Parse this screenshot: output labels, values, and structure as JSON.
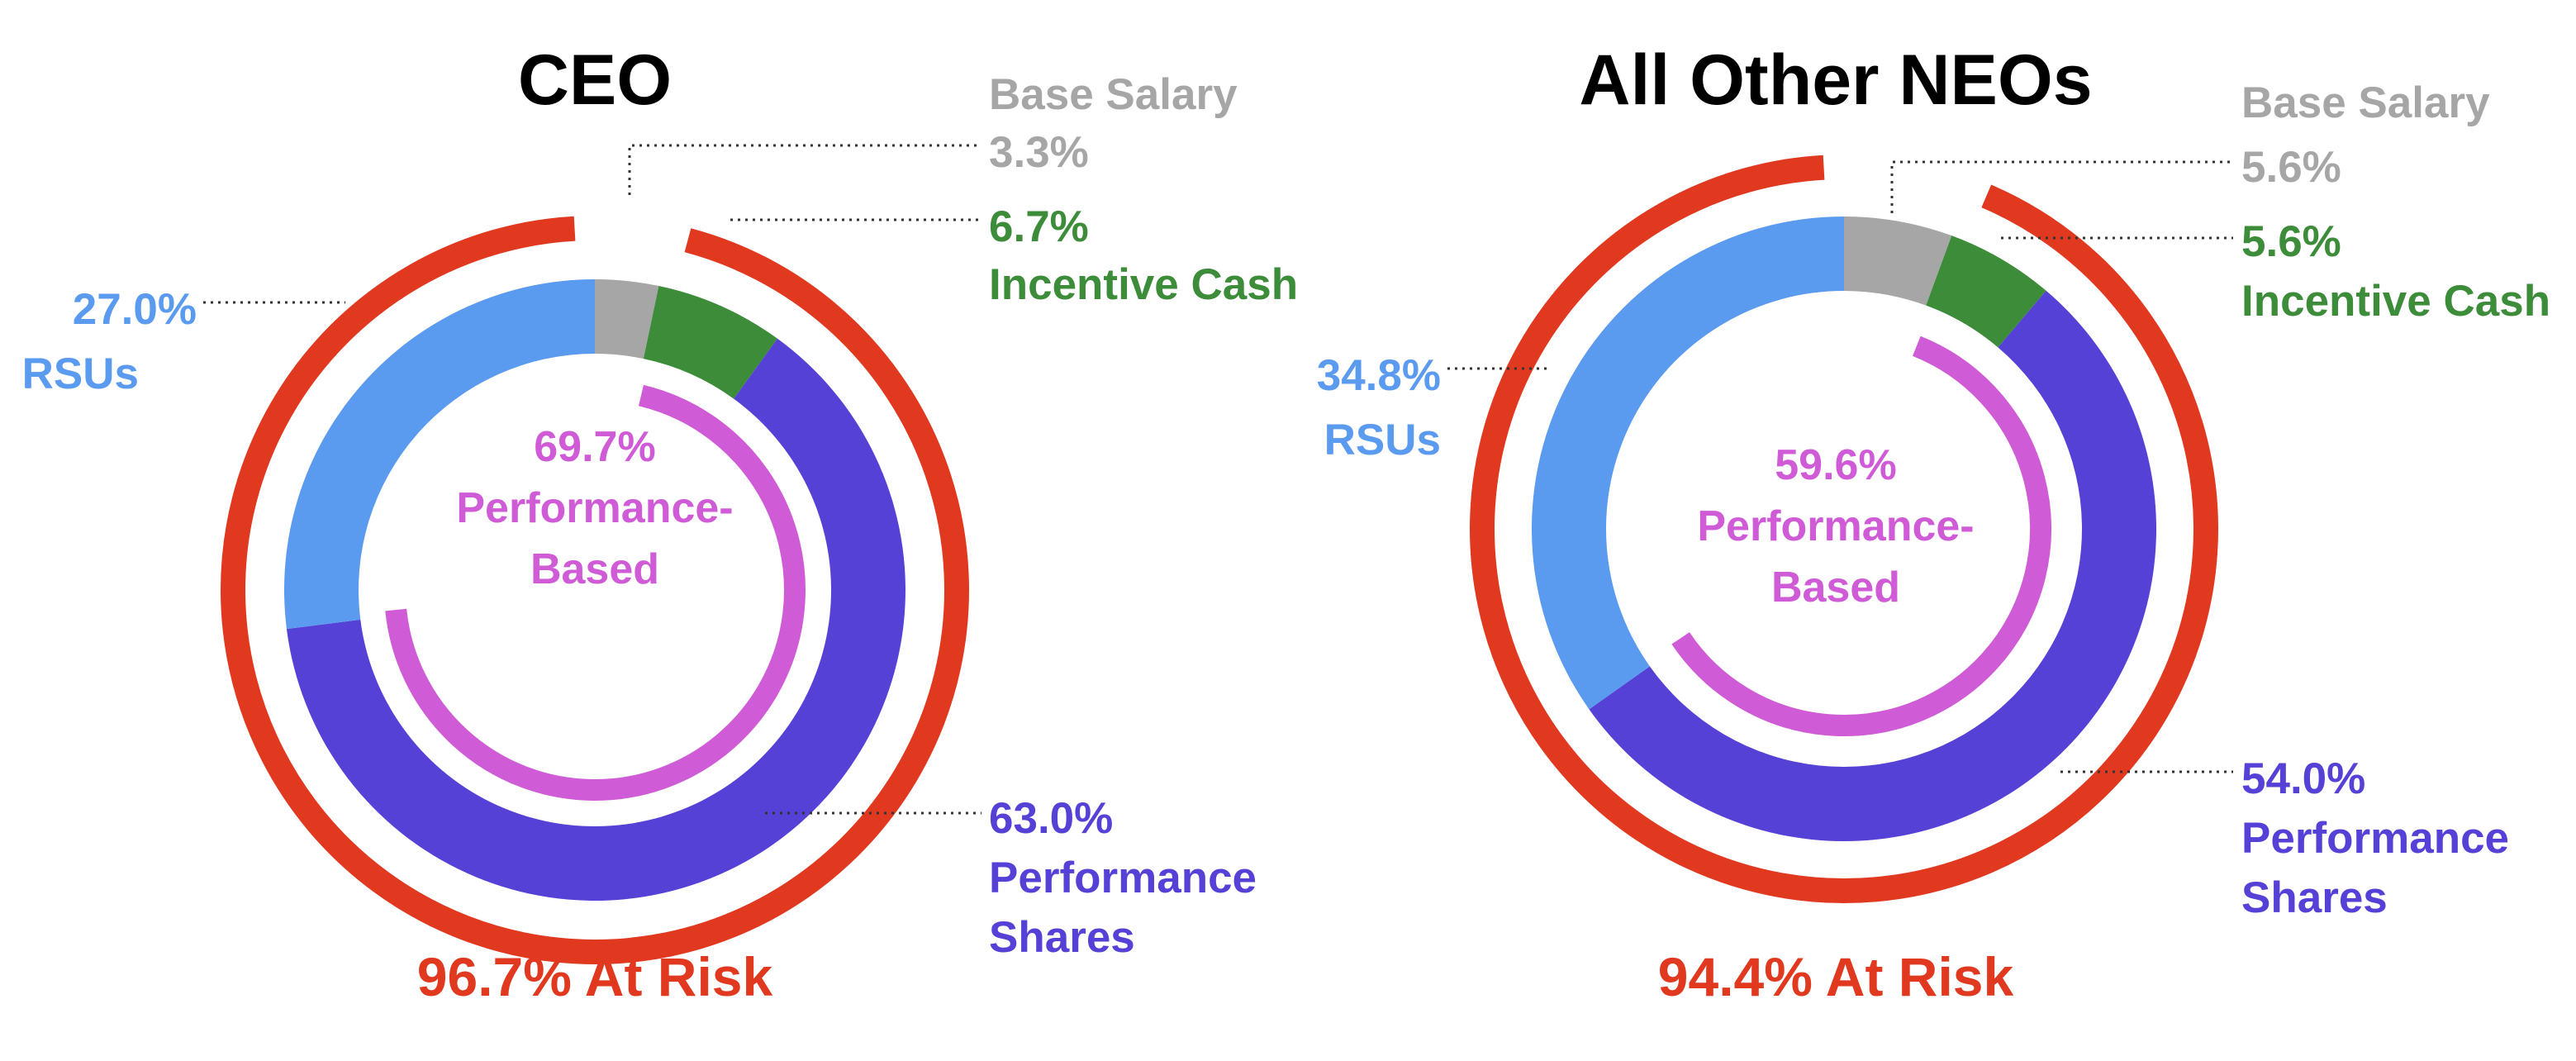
{
  "colors": {
    "base_salary": "#a6a6a6",
    "incentive_cash": "#3c8c3a",
    "performance_shares": "#5641d6",
    "rsus": "#5b9bef",
    "performance_based": "#cf5cd6",
    "at_risk": "#e1391f"
  },
  "chart_data": [
    {
      "type": "pie",
      "title": "CEO",
      "slices": [
        {
          "key": "base_salary",
          "name": "Base Salary",
          "value": 3.3,
          "value_label": "3.3%"
        },
        {
          "key": "incentive_cash",
          "name": "Incentive Cash",
          "value": 6.7,
          "value_label": "6.7%"
        },
        {
          "key": "performance_shares",
          "name_lines": [
            "Performance",
            "Shares"
          ],
          "value": 63.0,
          "value_label": "63.0%"
        },
        {
          "key": "rsus",
          "name": "RSUs",
          "value": 27.0,
          "value_label": "27.0%"
        }
      ],
      "performance_based": {
        "value": 69.7,
        "value_label": "69.7%",
        "label_lines": [
          "Performance-",
          "Based"
        ]
      },
      "at_risk": {
        "value": 96.7,
        "label": "96.7% At Risk"
      }
    },
    {
      "type": "pie",
      "title": "All Other NEOs",
      "slices": [
        {
          "key": "base_salary",
          "name": "Base Salary",
          "value": 5.6,
          "value_label": "5.6%"
        },
        {
          "key": "incentive_cash",
          "name": "Incentive Cash",
          "value": 5.6,
          "value_label": "5.6%"
        },
        {
          "key": "performance_shares",
          "name_lines": [
            "Performance",
            "Shares"
          ],
          "value": 54.0,
          "value_label": "54.0%"
        },
        {
          "key": "rsus",
          "name": "RSUs",
          "value": 34.8,
          "value_label": "34.8%"
        }
      ],
      "performance_based": {
        "value": 59.6,
        "value_label": "59.6%",
        "label_lines": [
          "Performance-",
          "Based"
        ]
      },
      "at_risk": {
        "value": 94.4,
        "label": "94.4% At Risk"
      }
    }
  ]
}
